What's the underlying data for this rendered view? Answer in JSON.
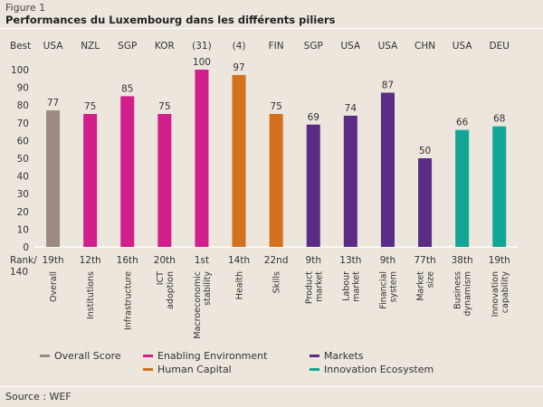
{
  "header": {
    "figure_label": "Figure 1",
    "title": "Performances du Luxembourg dans les différents piliers"
  },
  "footer": {
    "source": "Source : WEF"
  },
  "chart_data": {
    "type": "bar",
    "categories": [
      "Overall",
      "Institutions",
      "Infrastructure",
      "ICT adoption",
      "Macroeconomic stability",
      "Health",
      "Skills",
      "Product market",
      "Labour market",
      "Financial system",
      "Market size",
      "Business dynamism",
      "Innovation capability"
    ],
    "category_lines": [
      [
        "Overall"
      ],
      [
        "Institutions"
      ],
      [
        "Infrastructure"
      ],
      [
        "ICT",
        "adoption"
      ],
      [
        "Macroeconomic",
        "stability"
      ],
      [
        "Health"
      ],
      [
        "Skills"
      ],
      [
        "Product",
        "market"
      ],
      [
        "Labour",
        "market"
      ],
      [
        "Financial",
        "system"
      ],
      [
        "Market",
        "size"
      ],
      [
        "Business",
        "dynamism"
      ],
      [
        "Innovation",
        "capability"
      ]
    ],
    "values": [
      77,
      75,
      85,
      75,
      100,
      97,
      75,
      69,
      74,
      87,
      50,
      66,
      68
    ],
    "best_label": "Best",
    "best": [
      "USA",
      "NZL",
      "SGP",
      "KOR",
      "(31)",
      "(4)",
      "FIN",
      "SGP",
      "USA",
      "USA",
      "CHN",
      "USA",
      "DEU"
    ],
    "rank_label": [
      "Rank/",
      "140"
    ],
    "ranks": [
      "19th",
      "12th",
      "16th",
      "20th",
      "1st",
      "14th",
      "22nd",
      "9th",
      "13th",
      "9th",
      "77th",
      "38th",
      "19th"
    ],
    "groups": [
      "overall",
      "enabling",
      "enabling",
      "enabling",
      "enabling",
      "human",
      "human",
      "markets",
      "markets",
      "markets",
      "markets",
      "innovation",
      "innovation"
    ],
    "legend": [
      {
        "key": "overall",
        "label": "Overall Score",
        "color": "#9c8a80"
      },
      {
        "key": "enabling",
        "label": "Enabling Environment",
        "color": "#d21f8c"
      },
      {
        "key": "markets",
        "label": "Markets",
        "color": "#5a2c86"
      },
      {
        "key": "human",
        "label": "Human Capital",
        "color": "#d3711f"
      },
      {
        "key": "innovation",
        "label": "Innovation Ecosystem",
        "color": "#13a696"
      }
    ],
    "yticks": [
      0,
      10,
      20,
      30,
      40,
      50,
      60,
      70,
      80,
      90,
      100
    ],
    "ylim": [
      0,
      100
    ],
    "grid": false
  }
}
